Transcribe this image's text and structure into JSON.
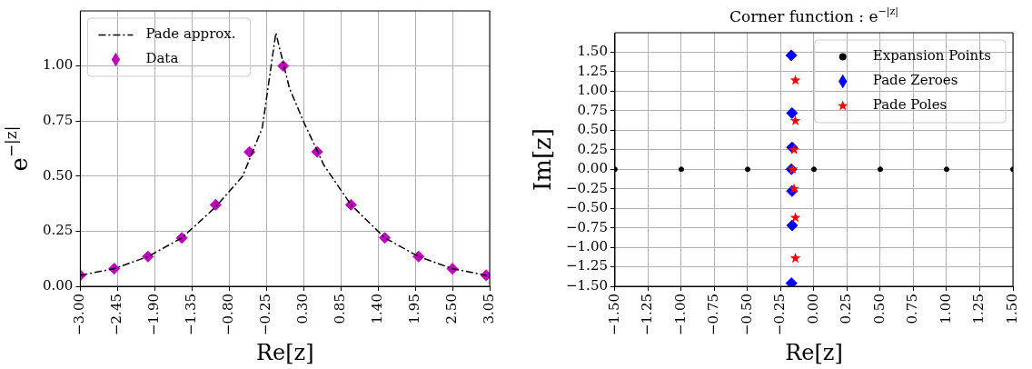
{
  "chart_data": [
    {
      "type": "line",
      "xlabel": "Re[z]",
      "ylabel": "e$^{−|z|}$",
      "legend": "top left",
      "grid": true,
      "xlim": [
        -3,
        3.05
      ],
      "ylim": [
        0,
        1.25
      ],
      "xticks": [
        {
          "value": -3,
          "label": "−3.00"
        },
        {
          "value": -2.45,
          "label": "−2.45"
        },
        {
          "value": -1.9,
          "label": "−1.90"
        },
        {
          "value": -1.35,
          "label": "−1.35"
        },
        {
          "value": -0.8,
          "label": "−0.80"
        },
        {
          "value": -0.25,
          "label": "−0.25"
        },
        {
          "value": 0.3,
          "label": "0.30"
        },
        0.85,
        {
          "value": 1.4,
          "label": "1.40"
        },
        {
          "value": 1.95,
          "label": "1.95"
        },
        {
          "value": 2.5,
          "label": "2.50"
        },
        3.05
      ],
      "yticks": [
        {
          "value": 0,
          "label": "0.00"
        },
        0.25,
        {
          "value": 0.5,
          "label": "0.50"
        },
        0.75,
        {
          "value": 1,
          "label": "1.00"
        }
      ],
      "series": [
        {
          "name": "Pade approx.",
          "color": "#000000",
          "line_style": "dashed",
          "marker": "none",
          "x": [
            -3,
            -2.5,
            -2,
            -1.5,
            -1,
            -0.6,
            -0.31,
            -0.11,
            0.09,
            0.31,
            0.6,
            1,
            1.5,
            2,
            2.5,
            3
          ],
          "values": [
            0.05,
            0.08,
            0.135,
            0.22,
            0.36,
            0.5,
            0.72,
            1.15,
            0.9,
            0.74,
            0.55,
            0.37,
            0.22,
            0.135,
            0.08,
            0.05
          ]
        },
        {
          "name": "Data",
          "type": "scatter",
          "color": "#bf00bf",
          "marker": "diamond",
          "x": [
            -3,
            -2.5,
            -2,
            -1.5,
            -1,
            -0.5,
            0,
            0.5,
            1,
            1.5,
            2,
            2.5,
            3
          ],
          "values": [
            0.05,
            0.08,
            0.135,
            0.22,
            0.37,
            0.61,
            1,
            0.61,
            0.37,
            0.22,
            0.135,
            0.08,
            0.05
          ]
        }
      ]
    },
    {
      "type": "scatter",
      "title": "Corner function : e$^{−|z|}$",
      "xlabel": "Re[z]",
      "ylabel": "Im[z]",
      "legend": "top right",
      "grid": true,
      "xlim": [
        -1.5,
        1.5
      ],
      "ylim": [
        -1.5,
        1.75
      ],
      "xticks": [
        {
          "value": -1.5,
          "label": "−1.50"
        },
        {
          "value": -1.25,
          "label": "−1.25"
        },
        {
          "value": -1,
          "label": "−1.00"
        },
        {
          "value": -0.75,
          "label": "−0.75"
        },
        {
          "value": -0.5,
          "label": "−0.50"
        },
        {
          "value": -0.25,
          "label": "−0.25"
        },
        {
          "value": 0,
          "label": "0.00"
        },
        0.25,
        {
          "value": 0.5,
          "label": "0.50"
        },
        0.75,
        {
          "value": 1,
          "label": "1.00"
        },
        1.25,
        {
          "value": 1.5,
          "label": "1.50"
        }
      ],
      "yticks": [
        {
          "value": -1.5,
          "label": "−1.50"
        },
        {
          "value": -1.25,
          "label": "−1.25"
        },
        {
          "value": -1,
          "label": "−1.00"
        },
        {
          "value": -0.75,
          "label": "−0.75"
        },
        {
          "value": -0.5,
          "label": "−0.50"
        },
        {
          "value": -0.25,
          "label": "−0.25"
        },
        {
          "value": 0,
          "label": "0.00"
        },
        0.25,
        {
          "value": 0.5,
          "label": "0.50"
        },
        0.75,
        {
          "value": 1,
          "label": "1.00"
        },
        1.25,
        {
          "value": 1.5,
          "label": "1.50"
        }
      ],
      "series": [
        {
          "name": "Expansion Points",
          "color": "#000000",
          "marker": "circle",
          "x": [
            -1.5,
            -1,
            -0.5,
            0,
            0.5,
            1,
            1.5
          ],
          "values": [
            0,
            0,
            0,
            0,
            0,
            0,
            0
          ]
        },
        {
          "name": "Pade Zeroes",
          "color": "#0000ff",
          "marker": "diamond",
          "x": [
            -0.17,
            -0.165,
            -0.165,
            -0.17,
            -0.165,
            -0.165,
            -0.17
          ],
          "values": [
            1.46,
            0.72,
            0.28,
            0,
            -0.28,
            -0.72,
            -1.46
          ]
        },
        {
          "name": "Pade Poles",
          "color": "#ff0000",
          "marker": "star",
          "x": [
            -0.14,
            -0.14,
            -0.15,
            -0.16,
            -0.15,
            -0.14,
            -0.14
          ],
          "values": [
            1.14,
            0.62,
            0.25,
            0,
            -0.25,
            -0.62,
            -1.14
          ]
        }
      ]
    }
  ]
}
